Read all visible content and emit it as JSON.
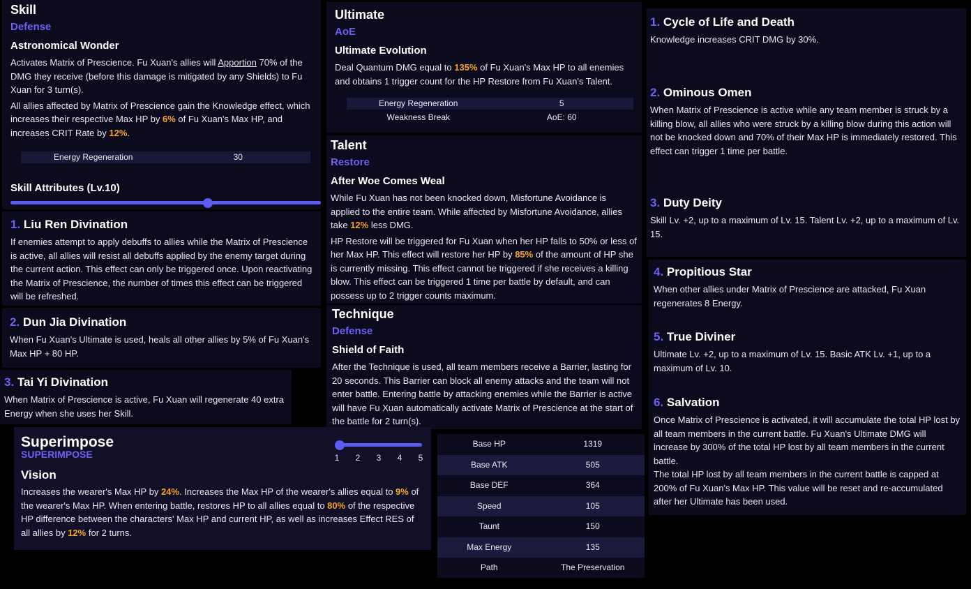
{
  "skill": {
    "title": "Skill",
    "tag": "Defense",
    "name": "Astronomical Wonder",
    "paragraphs": [
      [
        "Activates Matrix of Prescience. Fu Xuan's allies will ",
        {
          "underline": "Apportion"
        },
        " 70% of the DMG they receive (before this damage is mitigated by any Shields) to Fu Xuan for 3 turn(s)."
      ],
      [
        "All allies affected by Matrix of Prescience gain the Knowledge effect, which increases their respective Max HP by ",
        {
          "highlight": "6%"
        },
        " of Fu Xuan's Max HP, and increases CRIT Rate by ",
        {
          "highlight": "12%"
        },
        "."
      ]
    ],
    "stats": [
      [
        "Energy Regeneration",
        "30"
      ]
    ],
    "attributes": "Skill Attributes (Lv.10)"
  },
  "ultimate": {
    "title": "Ultimate",
    "tag": "AoE",
    "name": "Ultimate Evolution",
    "paragraphs": [
      [
        "Deal Quantum DMG equal to ",
        {
          "highlight": "135%"
        },
        " of Fu Xuan's Max HP to all enemies and obtains 1 trigger count for the HP Restore from Fu Xuan's Talent."
      ]
    ],
    "stats": [
      [
        "Energy Regeneration",
        "5"
      ],
      [
        "Weakness Break",
        "AoE: 60"
      ]
    ]
  },
  "talent": {
    "title": "Talent",
    "tag": "Restore",
    "name": "After Woe Comes Weal",
    "paragraphs": [
      [
        "While Fu Xuan has not been knocked down, Misfortune Avoidance is applied to the entire team. While affected by Misfortune Avoidance, allies take ",
        {
          "highlight": "12%"
        },
        " less DMG."
      ],
      [
        "HP Restore will be triggered for Fu Xuan when her HP falls to 50% or less of her Max HP. This effect will restore her HP by ",
        {
          "highlight": "85%"
        },
        " of the amount of HP she is currently missing. This effect cannot be triggered if she receives a killing blow. This effect can be triggered 1 time per battle by default, and can possess up to 2 trigger counts maximum."
      ]
    ]
  },
  "technique": {
    "title": "Technique",
    "tag": "Defense",
    "name": "Shield of Faith",
    "paragraphs": [
      [
        "After the Technique is used, all team members receive a Barrier, lasting for 20 seconds. This Barrier can block all enemy attacks and the team will not enter battle. Entering battle by attacking enemies while the Barrier is active will have Fu Xuan automatically activate Matrix of Prescience at the start of the battle for 2 turn(s)."
      ]
    ]
  },
  "traces": [
    {
      "number": "1.",
      "name": "Liu Ren Divination",
      "paragraphs": [
        [
          "If enemies attempt to apply debuffs to allies while the Matrix of Prescience is active, all allies will resist all debuffs applied by the enemy target during the current action. This effect can only be triggered once. Upon reactivating the Matrix of Prescience, the number of times this effect can be triggered will be refreshed."
        ]
      ]
    },
    {
      "number": "2.",
      "name": "Dun Jia Divination",
      "paragraphs": [
        [
          "When Fu Xuan's Ultimate is used, heals all other allies by 5% of Fu Xuan's Max HP + 80 HP."
        ]
      ]
    },
    {
      "number": "3.",
      "name": "Tai Yi Divination",
      "paragraphs": [
        [
          "When Matrix of Prescience is active, Fu Xuan will regenerate 40 extra Energy when she uses her Skill."
        ]
      ]
    }
  ],
  "eidolons": [
    {
      "number": "1.",
      "name": "Cycle of Life and Death",
      "paragraphs": [
        [
          "Knowledge increases CRIT DMG by 30%."
        ]
      ]
    },
    {
      "number": "2.",
      "name": "Ominous Omen",
      "paragraphs": [
        [
          "When Matrix of Prescience is active while any team member is struck by a killing blow, all allies who were struck by a killing blow during this action will not be knocked down and 70% of their Max HP is immediately restored. This effect can trigger 1 time per battle."
        ]
      ]
    },
    {
      "number": "3.",
      "name": "Duty Deity",
      "paragraphs": [
        [
          "Skill Lv. +2, up to a maximum of Lv. 15. Talent Lv. +2, up to a maximum of Lv. 15."
        ]
      ]
    },
    {
      "number": "4.",
      "name": "Propitious Star",
      "paragraphs": [
        [
          "When other allies under Matrix of Prescience are attacked, Fu Xuan regenerates 8 Energy."
        ]
      ]
    },
    {
      "number": "5.",
      "name": "True Diviner",
      "paragraphs": [
        [
          "Ultimate Lv. +2, up to a maximum of Lv. 15. Basic ATK Lv. +1, up to a maximum of Lv. 10."
        ]
      ]
    },
    {
      "number": "6.",
      "name": "Salvation",
      "paragraphs": [
        [
          "Once Matrix of Prescience is activated, it will accumulate the total HP lost by all team members in the current battle. Fu Xuan's Ultimate DMG will increase by 300% of the total HP lost by all team members in the current battle."
        ],
        [
          "The total HP lost by all team members in the current battle is capped at 200% of Fu Xuan's Max HP. This value will be reset and re-accumulated after her Ultimate has been used."
        ]
      ]
    }
  ],
  "superimpose": {
    "title": "Superimpose",
    "subtitle": "SUPERIMPOSE",
    "levels": [
      "1",
      "2",
      "3",
      "4",
      "5"
    ],
    "name": "Vision",
    "paragraphs": [
      [
        "Increases the wearer's Max HP by ",
        {
          "highlight": "24%"
        },
        ". Increases the Max HP of the wearer's allies equal to ",
        {
          "highlight": "9%"
        },
        " of the wearer's Max HP. When entering battle, restores HP to all allies equal to ",
        {
          "highlight": "80%"
        },
        " of the respective HP difference between the characters' Max HP and current HP, as well as increases Effect RES of all allies by ",
        {
          "highlight": "12%"
        },
        " for 2 turns."
      ]
    ]
  },
  "stats": [
    [
      "Base HP",
      "1319"
    ],
    [
      "Base ATK",
      "505"
    ],
    [
      "Base DEF",
      "364"
    ],
    [
      "Speed",
      "105"
    ],
    [
      "Taunt",
      "150"
    ],
    [
      "Max Energy",
      "135"
    ],
    [
      "Path",
      "The Preservation"
    ]
  ]
}
